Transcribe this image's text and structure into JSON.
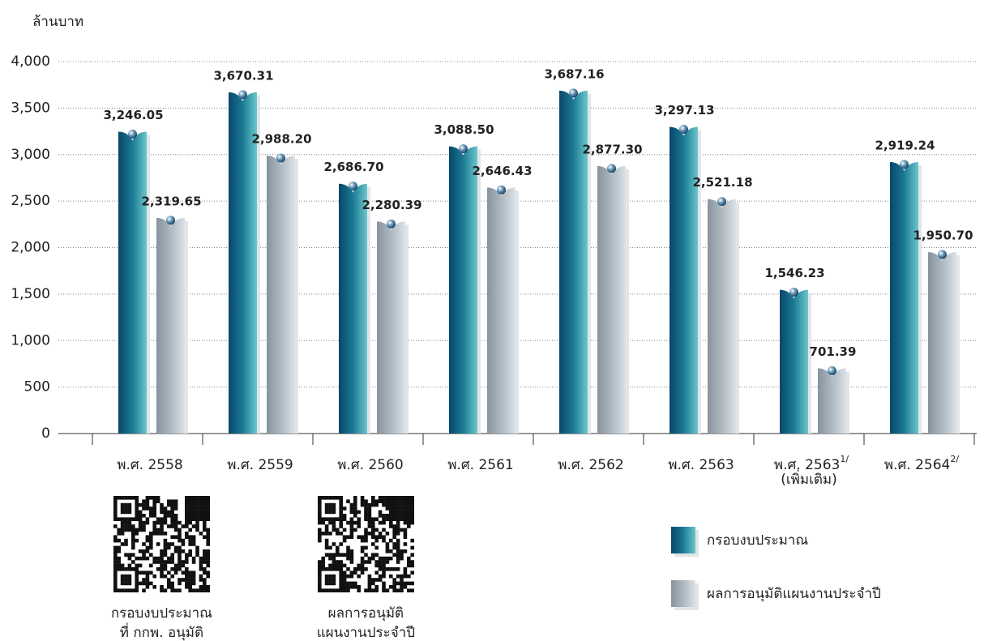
{
  "chart_data": {
    "type": "bar",
    "y_axis_label": "ล้านบาท",
    "categories": [
      "พ.ศ. 2558",
      "พ.ศ. 2559",
      "พ.ศ. 2560",
      "พ.ศ. 2561",
      "พ.ศ. 2562",
      "พ.ศ. 2563",
      "พ.ศ. 2563",
      "พ.ศ. 2564"
    ],
    "category_superscripts": [
      null,
      null,
      null,
      null,
      null,
      null,
      "1/",
      "2/"
    ],
    "category_sublabels": [
      null,
      null,
      null,
      null,
      null,
      null,
      "(เพิ่มเติม)",
      null
    ],
    "series": [
      {
        "name": "กรอบงบประมาณ",
        "color": "#0b5475",
        "values": [
          3246.05,
          3670.31,
          2686.7,
          3088.5,
          3687.16,
          3297.13,
          1546.23,
          2919.24
        ],
        "value_labels": [
          "3,246.05",
          "3,670.31",
          "2,686.70",
          "3,088.50",
          "3,687.16",
          "3,297.13",
          "1,546.23",
          "2,919.24"
        ]
      },
      {
        "name": "ผลการอนุมัติแผนงานประจำปี",
        "color": "#a7b2bc",
        "values": [
          2319.65,
          2988.2,
          2280.39,
          2646.43,
          2877.3,
          2521.18,
          701.39,
          1950.7
        ],
        "value_labels": [
          "2,319.65",
          "2,988.20",
          "2,280.39",
          "2,646.43",
          "2,877.30",
          "2,521.18",
          "701.39",
          "1,950.70"
        ]
      }
    ],
    "ylim": [
      0,
      4000
    ],
    "yticks": [
      0,
      500,
      {
        "value": 1000,
        "label": "1,000"
      },
      {
        "value": 1500,
        "label": "1,500"
      },
      {
        "value": 2000,
        "label": "2,000"
      },
      {
        "value": 2500,
        "label": "2,500"
      },
      {
        "value": 3000,
        "label": "3,000"
      },
      {
        "value": 3500,
        "label": "3,500"
      },
      {
        "value": 4000,
        "label": "4,000"
      }
    ],
    "grid": true
  },
  "qr_codes": [
    {
      "caption": [
        "กรอบงบประมาณ",
        "ที่ กกพ. อนุมัติ"
      ]
    },
    {
      "caption": [
        "ผลการอนุมัติ",
        "แผนงานประจำปี"
      ]
    }
  ]
}
